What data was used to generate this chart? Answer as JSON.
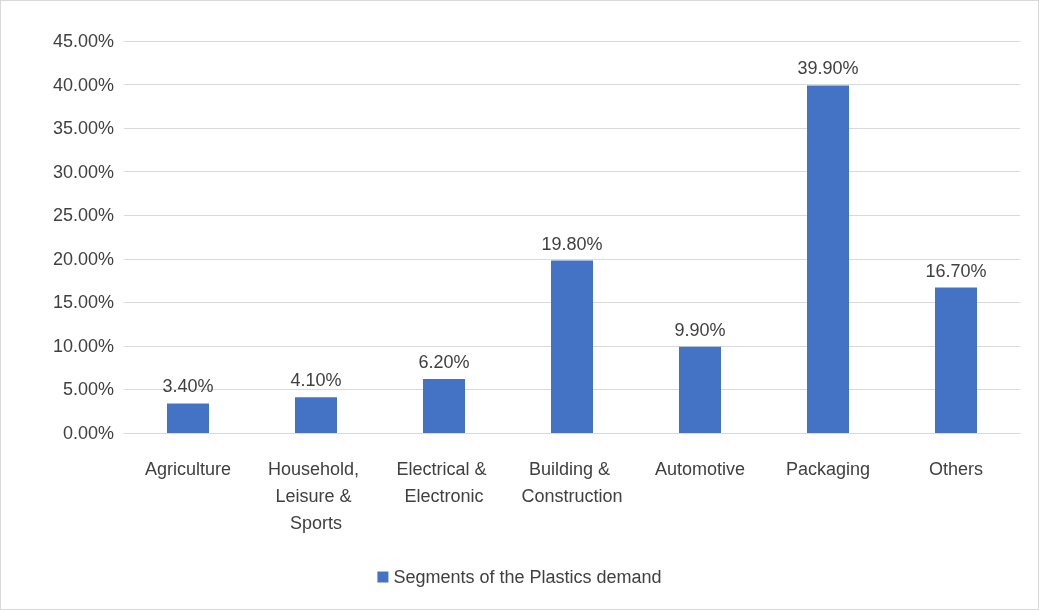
{
  "chart_data": {
    "type": "bar",
    "categories": [
      "Agriculture",
      "Household, Leisure & Sports",
      "Electrical & Electronic",
      "Building & Construction",
      "Automotive",
      "Packaging",
      "Others"
    ],
    "series": [
      {
        "name": "Segments of the Plastics demand",
        "color": "#4472c4",
        "values": [
          3.4,
          4.1,
          6.2,
          19.8,
          9.9,
          39.9,
          16.7
        ],
        "value_labels": [
          "3.40%",
          "4.10%",
          "6.20%",
          "19.80%",
          "9.90%",
          "39.90%",
          "16.70%"
        ]
      }
    ],
    "ylim": [
      0,
      45
    ],
    "yticks": [
      {
        "value": 0,
        "label": "0.00%"
      },
      {
        "value": 5,
        "label": "5.00%"
      },
      {
        "value": 10,
        "label": "10.00%"
      },
      {
        "value": 15,
        "label": "15.00%"
      },
      {
        "value": 20,
        "label": "20.00%"
      },
      {
        "value": 25,
        "label": "25.00%"
      },
      {
        "value": 30,
        "label": "30.00%"
      },
      {
        "value": 35,
        "label": "35.00%"
      },
      {
        "value": 40,
        "label": "40.00%"
      },
      {
        "value": 45,
        "label": "45.00%"
      }
    ],
    "grid": "y",
    "legend": "bottom"
  }
}
